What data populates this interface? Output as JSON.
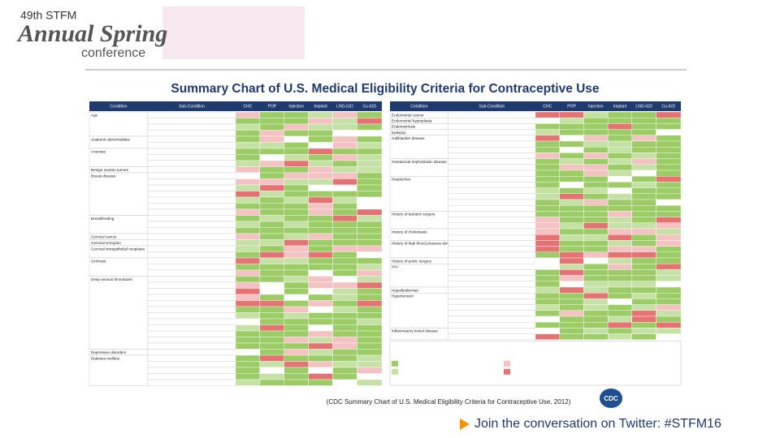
{
  "header": {
    "edition": "49th STFM",
    "line1": "Annual Spring",
    "line2": "conference"
  },
  "title": "Summary Chart of U.S. Medical Eligibility Criteria for Contraceptive Use",
  "columns": [
    "Condition",
    "Sub-Condition",
    "CHC",
    "POP",
    "Injection",
    "Implant",
    "LNG-IUD",
    "Cu-IUD"
  ],
  "left_conditions": [
    "Age",
    "Anatomic abnormalities",
    "Anemias",
    "Benign ovarian tumors",
    "Breast disease",
    "Breastfeeding",
    "Cervical cancer",
    "Cervical ectropion",
    "Cervical intraepithelial neoplasia",
    "Cirrhosis",
    "Deep venous thrombosis",
    "Depressive disorders",
    "Diabetes mellitus"
  ],
  "right_conditions": [
    "Endometrial cancer",
    "Endometrial hyperplasia",
    "Endometriosis",
    "Epilepsy",
    "Gallbladder disease",
    "Gestational trophoblastic disease",
    "Headaches",
    "History of bariatric surgery",
    "History of cholestasis",
    "History of high blood pressure during pregnancy",
    "History of pelvic surgery",
    "HIV",
    "Hyperlipidemias",
    "Hypertension",
    "Inflammatory bowel disease"
  ],
  "caption": "(CDC Summary Chart of U.S. Medical Eligibility Criteria for Contraceptive Use, 2012)",
  "cdc": "CDC",
  "footer": "Join the conversation on Twitter: #STFM16"
}
